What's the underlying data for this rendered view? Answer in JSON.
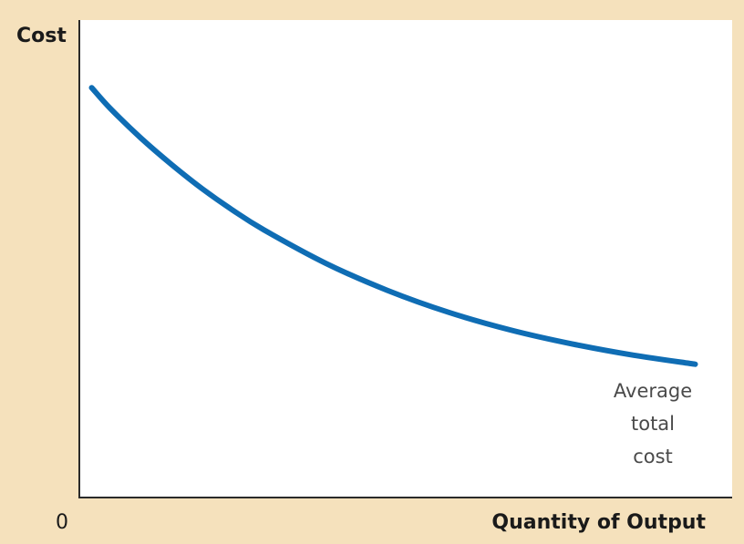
{
  "chart_data": {
    "type": "line",
    "title": "",
    "ylabel": "Cost",
    "xlabel": "Quantity of Output",
    "origin_label": "0",
    "grid": false,
    "background_color": "#f5e1bc",
    "plot_background_color": "#ffffff",
    "series": [
      {
        "name": "Average total cost",
        "label_lines": [
          "Average",
          "total",
          "cost"
        ],
        "color": "#0f6db4",
        "x": [
          0.2,
          0.5,
          1,
          1.5,
          2,
          2.5,
          3,
          4,
          5,
          6,
          7,
          8,
          9,
          10
        ],
        "y": [
          9.1,
          8.64,
          7.98,
          7.39,
          6.85,
          6.37,
          5.94,
          5.2,
          4.6,
          4.11,
          3.72,
          3.41,
          3.16,
          2.96
        ]
      }
    ],
    "xlim": [
      0,
      10.6
    ],
    "ylim": [
      0,
      10.6
    ]
  }
}
